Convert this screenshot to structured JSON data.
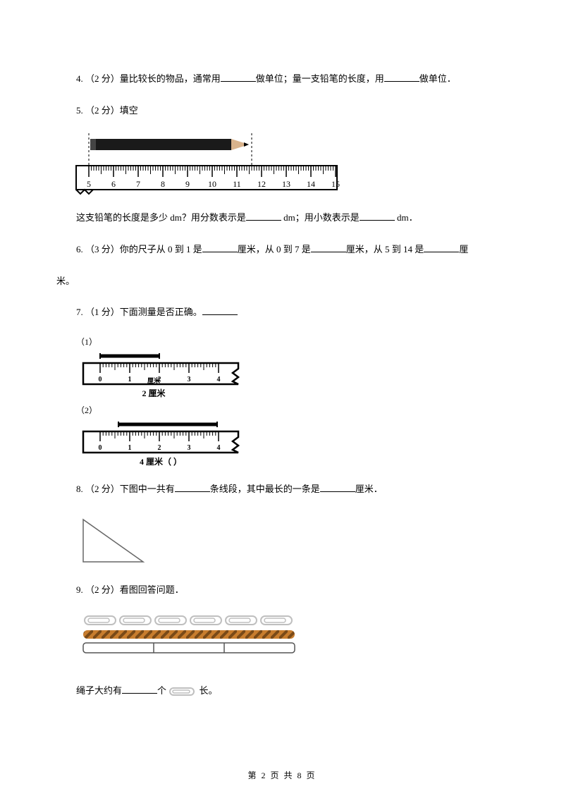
{
  "q4": {
    "prefix": "4.  （2 分）量比较长的物品，通常用",
    "mid": "做单位；量一支铅笔的长度，用",
    "suffix": "做单位．"
  },
  "q5": {
    "header": "5.  （2 分）填空",
    "line2a": "这支铅笔的长度是多少 dm？用分数表示是",
    "line2b": " dm；用小数表示是",
    "line2c": " dm．",
    "ruler": {
      "start": 5,
      "end": 15,
      "pencil_start_val": 5,
      "pencil_end_val": 11.6,
      "tick_color": "#000000",
      "pencil_body": "#1a1a1a",
      "pencil_tip": "#d9d9d9"
    }
  },
  "q6": {
    "a": "6.  （3 分）你的尺子从 0 到 1 是",
    "b": "厘米，从 0 到 7 是",
    "c": "厘米，从 5 到 14 是",
    "d": "厘",
    "e": "米。"
  },
  "q7": {
    "header": "7.  （1 分）下面测量是否正确。",
    "label1": "（1）",
    "label2": "（2）",
    "ruler1": {
      "ticks": [
        "0",
        "1",
        "2",
        "3",
        "4"
      ],
      "caption": "2 厘米"
    },
    "ruler2": {
      "ticks": [
        "0",
        "1",
        "2",
        "3",
        "4"
      ],
      "caption": "4 厘米（    ）"
    }
  },
  "q8": {
    "a": "8.  （2 分）下图中一共有",
    "b": "条线段，其中最长的一条是",
    "c": "厘米．",
    "triangle_stroke": "#666666"
  },
  "q9": {
    "header": "9.  （2 分）看图回答问题．",
    "rope_color1": "#c87d2e",
    "rope_color2": "#7a4a18",
    "clip_color": "#bfbfbf",
    "bar_stroke": "#555555",
    "line_a": "绳子大约有",
    "line_b": "个",
    "line_c": "长。"
  },
  "footer": "第 2 页 共 8 页"
}
